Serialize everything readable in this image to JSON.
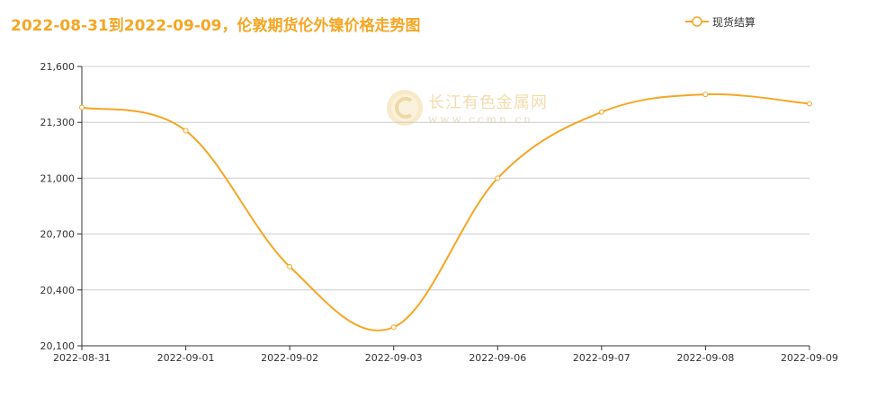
{
  "chart_data": {
    "type": "line",
    "title": "2022-08-31到2022-09-09，伦敦期货伦外镍价格走势图",
    "categories": [
      "2022-08-31",
      "2022-09-01",
      "2022-09-02",
      "2022-09-03",
      "2022-09-06",
      "2022-09-07",
      "2022-09-08",
      "2022-09-09"
    ],
    "series": [
      {
        "name": "现货结算",
        "values": [
          21380,
          21255,
          20525,
          20200,
          21000,
          21355,
          21450,
          21400
        ],
        "color": "#f5a623"
      }
    ],
    "ylim": [
      20100,
      21600
    ],
    "yticks": [
      21600,
      21300,
      21000,
      20700,
      20400,
      20100
    ],
    "ytick_labels": [
      "21,600",
      "21,300",
      "21,000",
      "20,700",
      "20,400",
      "20,100"
    ],
    "grid": true,
    "legend_position": "top-right",
    "smooth": true
  },
  "watermark": {
    "name": "长江有色金属网",
    "url": "www.ccmn.cn",
    "color": "#e7b34e"
  }
}
